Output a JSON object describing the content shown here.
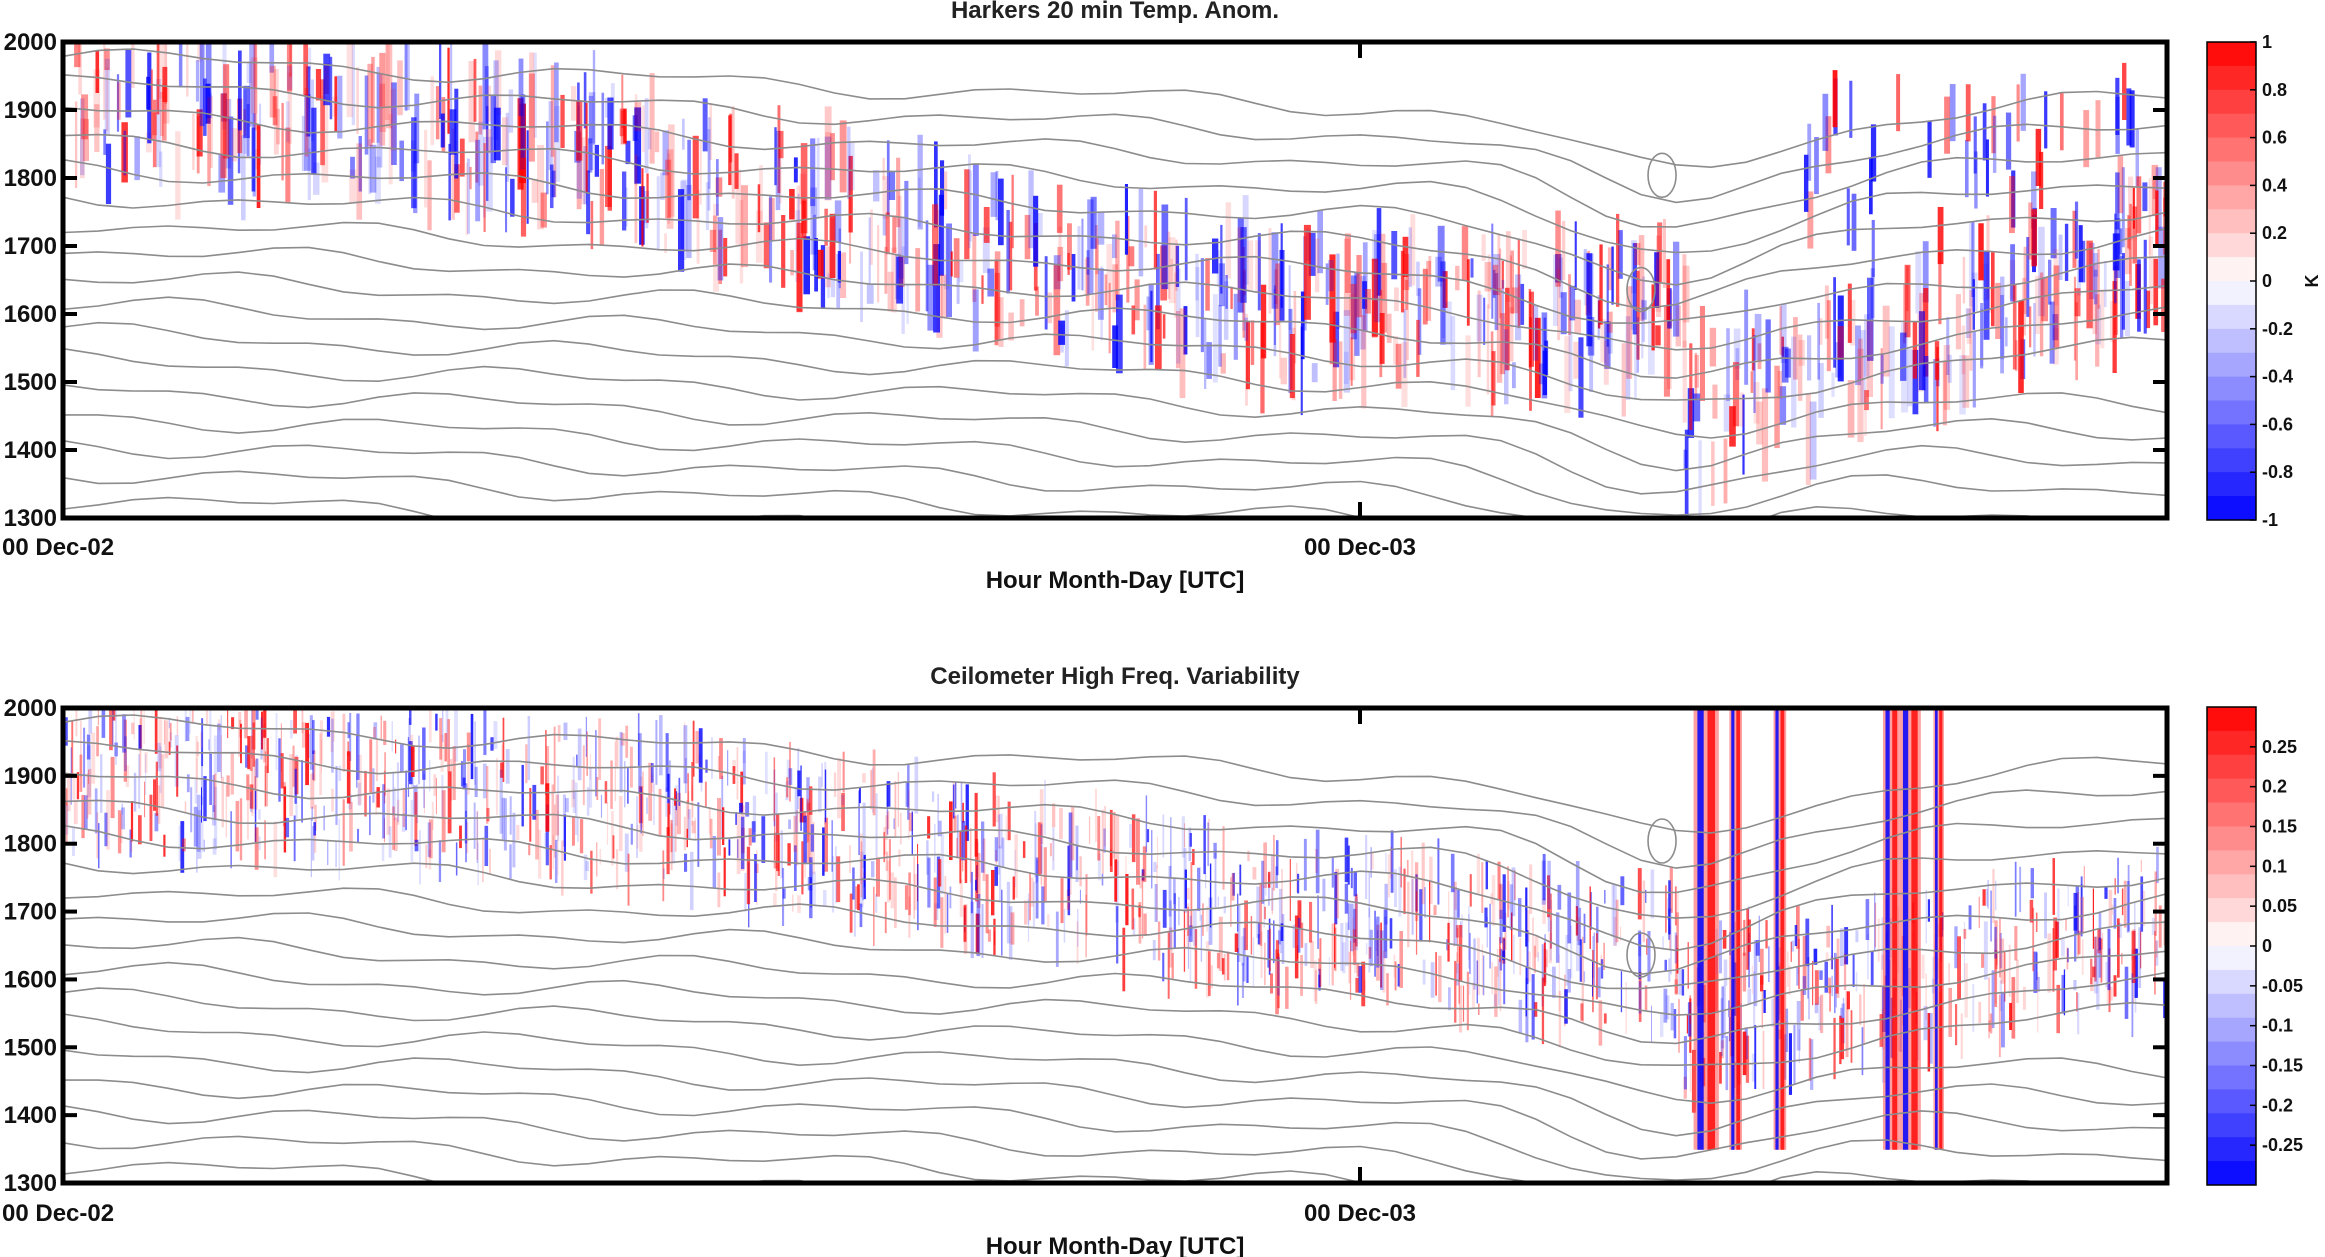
{
  "chart_data": [
    {
      "type": "heatmap",
      "title": "Harkers 20 min Temp. Anom.",
      "xlabel": "Hour Month-Day [UTC]",
      "ylabel": "",
      "x_ticks": [
        "00 Dec-02",
        "00 Dec-03"
      ],
      "ylim": [
        1300,
        2000
      ],
      "y_ticks": [
        1300,
        1400,
        1500,
        1600,
        1700,
        1800,
        1900,
        2000
      ],
      "colorbar": {
        "label": "K",
        "min": -1,
        "max": 1,
        "ticks": [
          "1",
          "0.8",
          "0.6",
          "0.4",
          "0.2",
          "0",
          "-0.2",
          "-0.4",
          "-0.6",
          "-0.8",
          "-1"
        ]
      },
      "colors": {
        "positive": "#ff0000",
        "negative": "#0000ff",
        "contour": "#8c8c8c"
      },
      "overlay": "grey isotherm contour lines"
    },
    {
      "type": "heatmap",
      "title": "Ceilometer High Freq. Variability",
      "xlabel": "Hour Month-Day [UTC]",
      "ylabel": "",
      "x_ticks": [
        "00 Dec-02",
        "00 Dec-03"
      ],
      "ylim": [
        1300,
        2000
      ],
      "y_ticks": [
        1300,
        1400,
        1500,
        1600,
        1700,
        1800,
        1900,
        2000
      ],
      "colorbar": {
        "label": "",
        "min": -0.3,
        "max": 0.3,
        "ticks": [
          "0.25",
          "0.2",
          "0.15",
          "0.1",
          "0.05",
          "0",
          "-0.05",
          "-0.1",
          "-0.15",
          "-0.2",
          "-0.25"
        ]
      },
      "colors": {
        "positive": "#ff0000",
        "negative": "#0000ff",
        "contour": "#8c8c8c"
      },
      "overlay": "grey isotherm contour lines"
    }
  ]
}
